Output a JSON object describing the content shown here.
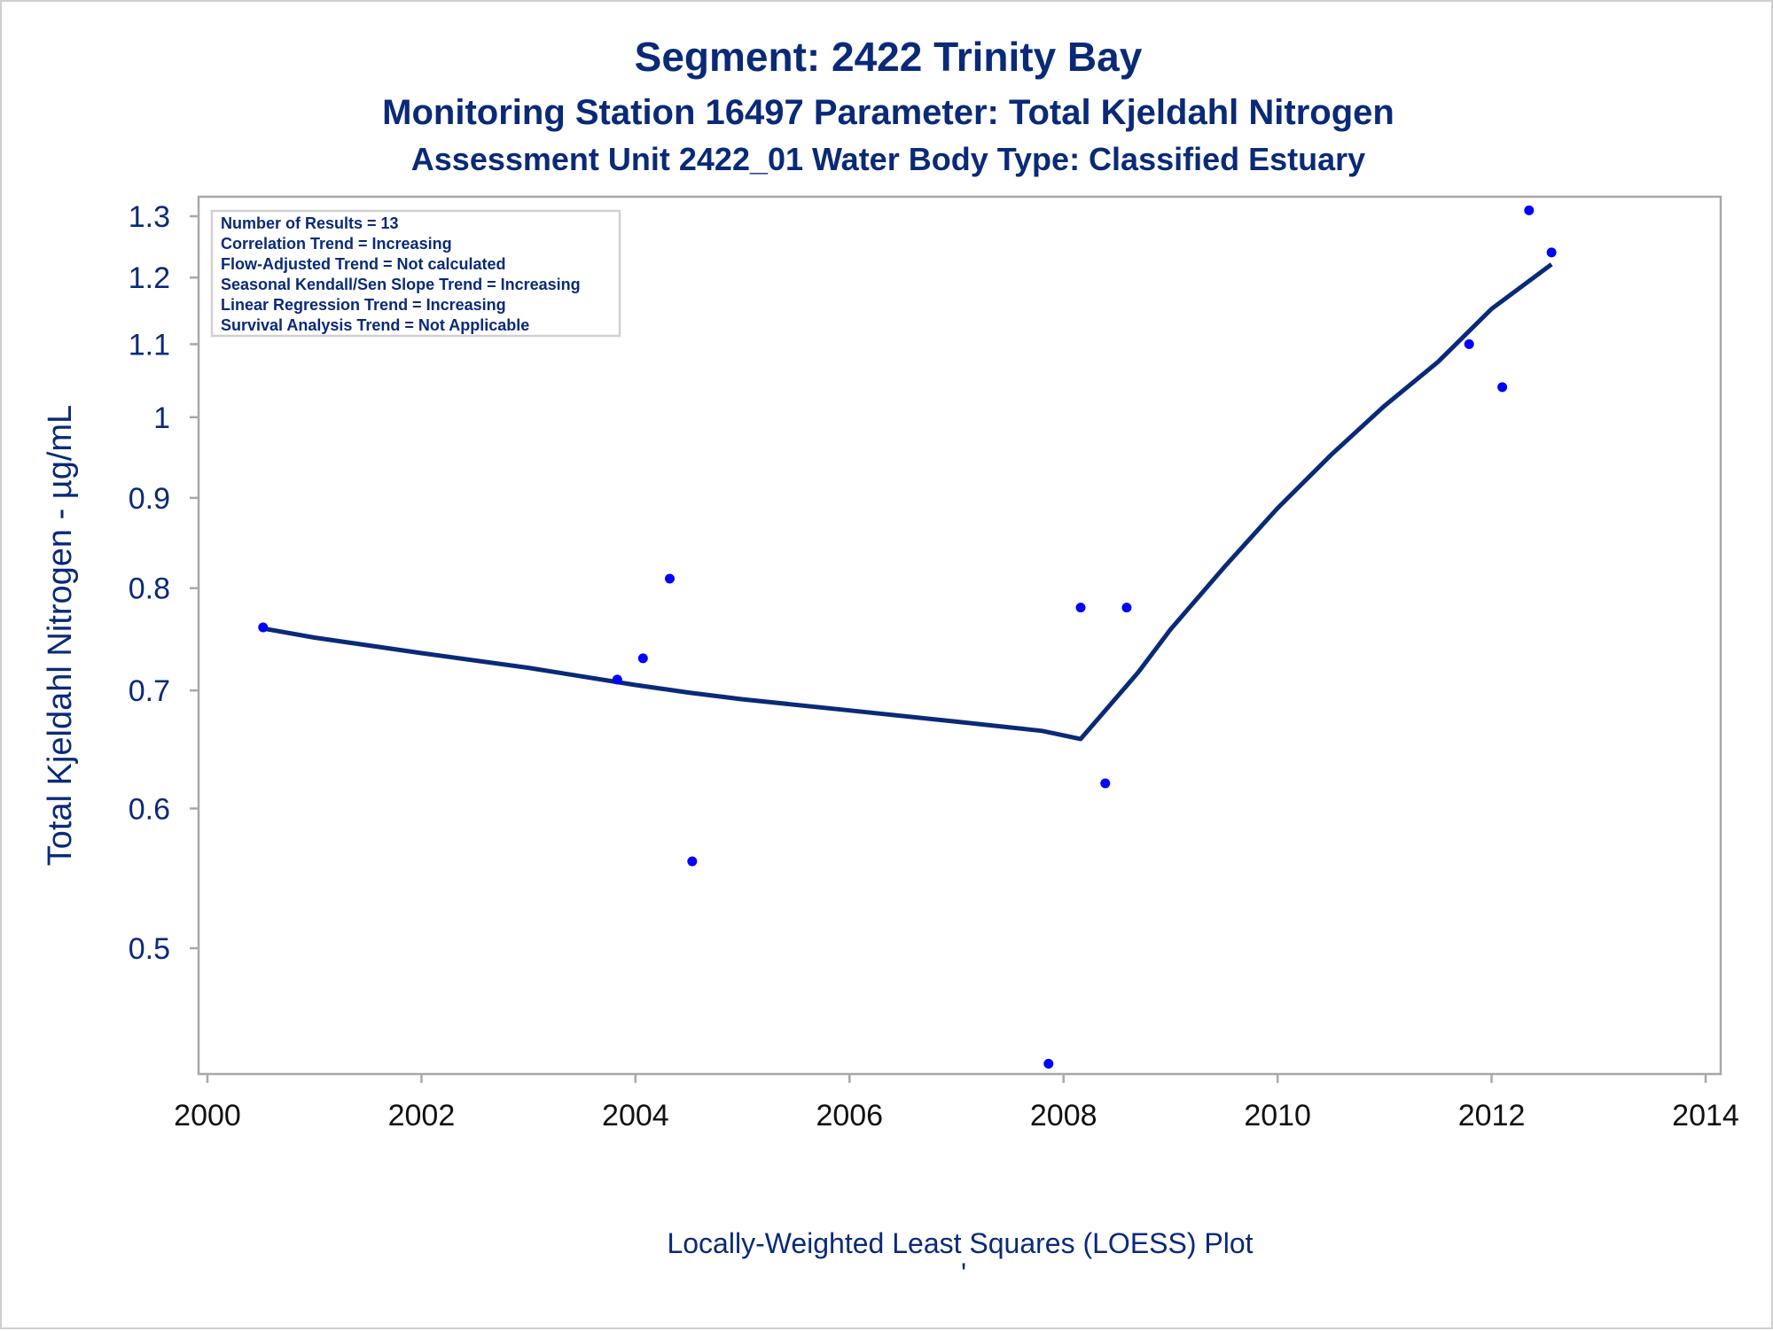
{
  "chart_data": {
    "type": "scatter",
    "title": "Segment: 2422  Trinity Bay",
    "subtitle": "Monitoring Station 16497 Parameter: Total Kjeldahl Nitrogen",
    "subtitle2": "Assessment Unit 2422_01   Water Body Type: Classified Estuary",
    "ylabel": "Total Kjeldahl Nitrogen -  µg/mL",
    "xlabel": "",
    "footnote": "Locally-Weighted Least Squares (LOESS) Plot",
    "footnote_mark": "'",
    "y_scale": "log",
    "xlim": [
      2000,
      2014
    ],
    "ylim": [
      0.42,
      1.32
    ],
    "x_ticks": [
      2000,
      2002,
      2004,
      2006,
      2008,
      2010,
      2012,
      2014
    ],
    "x_tick_labels": [
      "2000",
      "2002",
      "2004",
      "2006",
      "2008",
      "2010",
      "2012",
      "2014"
    ],
    "y_ticks": [
      0.5,
      0.6,
      0.7,
      0.8,
      0.9,
      1.0,
      1.1,
      1.2,
      1.3
    ],
    "y_tick_labels": [
      "0.5",
      "0.6",
      "0.7",
      "0.8",
      "0.9",
      "1",
      "1.1",
      "1.2",
      "1.3"
    ],
    "grid": false,
    "legend_position": "top-left",
    "legend_lines": [
      "Number of Results = 13",
      "Correlation Trend = Increasing",
      "Flow-Adjusted Trend = Not calculated",
      "Seasonal Kendall/Sen Slope Trend = Increasing",
      "Linear Regression Trend = Increasing",
      "Survival Analysis Trend = Not Applicable"
    ],
    "series": [
      {
        "kind": "points",
        "color": "#0000ff",
        "points": [
          {
            "x": 2000.52,
            "y": 0.76
          },
          {
            "x": 2003.83,
            "y": 0.71
          },
          {
            "x": 2004.07,
            "y": 0.73
          },
          {
            "x": 2004.32,
            "y": 0.81
          },
          {
            "x": 2004.53,
            "y": 0.56
          },
          {
            "x": 2007.86,
            "y": 0.43
          },
          {
            "x": 2008.16,
            "y": 0.78
          },
          {
            "x": 2008.39,
            "y": 0.62
          },
          {
            "x": 2008.59,
            "y": 0.78
          },
          {
            "x": 2011.79,
            "y": 1.1
          },
          {
            "x": 2012.1,
            "y": 1.04
          },
          {
            "x": 2012.35,
            "y": 1.31
          },
          {
            "x": 2012.56,
            "y": 1.24
          }
        ]
      },
      {
        "kind": "line",
        "color": "#0a2a78",
        "points": [
          {
            "x": 2000.52,
            "y": 0.759
          },
          {
            "x": 2001.0,
            "y": 0.75
          },
          {
            "x": 2002.0,
            "y": 0.735
          },
          {
            "x": 2003.0,
            "y": 0.721
          },
          {
            "x": 2004.0,
            "y": 0.705
          },
          {
            "x": 2004.5,
            "y": 0.698
          },
          {
            "x": 2005.0,
            "y": 0.692
          },
          {
            "x": 2006.0,
            "y": 0.682
          },
          {
            "x": 2007.0,
            "y": 0.672
          },
          {
            "x": 2007.8,
            "y": 0.664
          },
          {
            "x": 2008.16,
            "y": 0.657
          },
          {
            "x": 2008.4,
            "y": 0.683
          },
          {
            "x": 2008.7,
            "y": 0.717
          },
          {
            "x": 2009.0,
            "y": 0.758
          },
          {
            "x": 2009.5,
            "y": 0.822
          },
          {
            "x": 2010.0,
            "y": 0.888
          },
          {
            "x": 2010.5,
            "y": 0.952
          },
          {
            "x": 2011.0,
            "y": 1.015
          },
          {
            "x": 2011.5,
            "y": 1.075
          },
          {
            "x": 2012.0,
            "y": 1.152
          },
          {
            "x": 2012.56,
            "y": 1.221
          }
        ]
      }
    ]
  }
}
